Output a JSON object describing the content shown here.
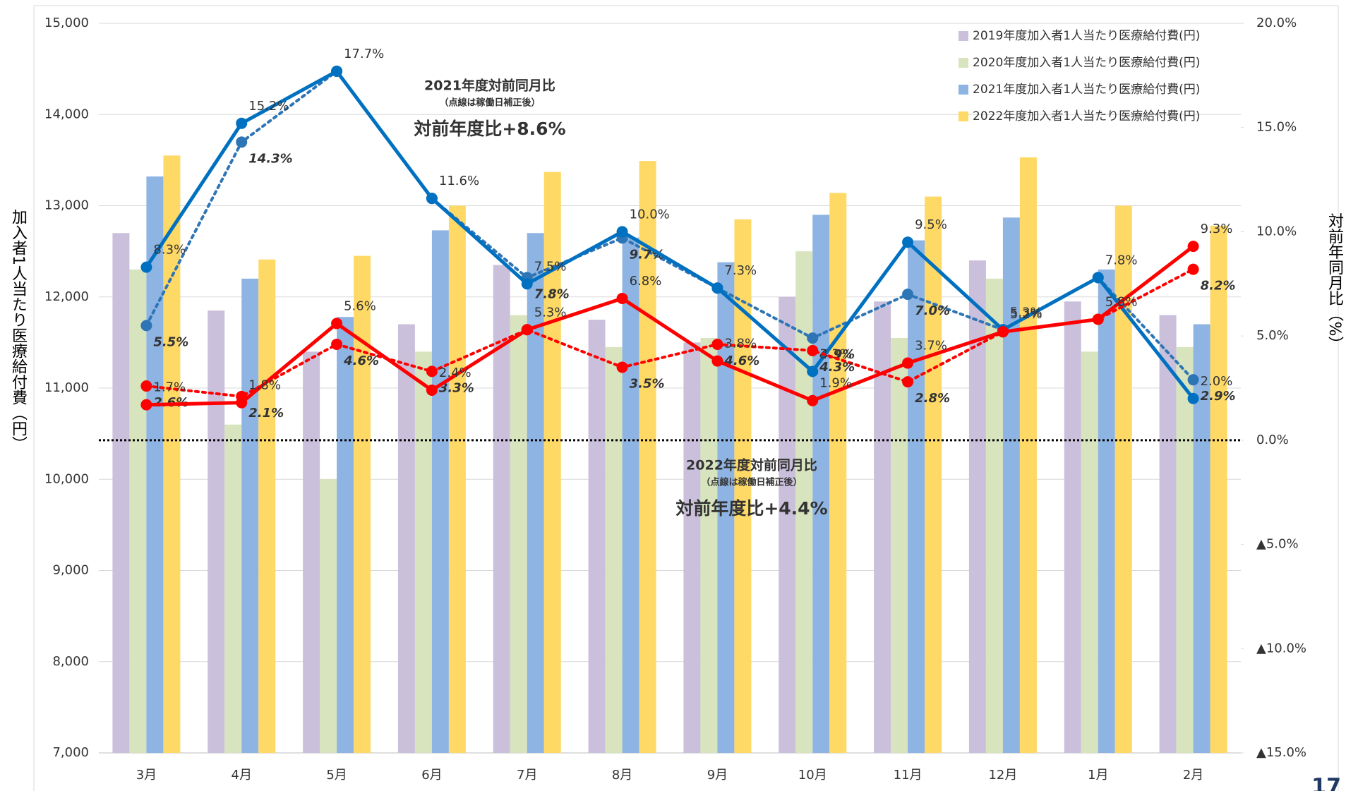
{
  "chart_data": {
    "type": "bar",
    "y_label": "加入者1人当たり医療給付費（円）",
    "y2_label": "対前年同月比（%）",
    "categories": [
      "3月",
      "4月",
      "5月",
      "6月",
      "7月",
      "8月",
      "9月",
      "10月",
      "11月",
      "12月",
      "1月",
      "2月"
    ],
    "ylim": [
      7000,
      15000
    ],
    "yticks": [
      {
        "value": 7000,
        "label": "7,000"
      },
      {
        "value": 8000,
        "label": "8,000"
      },
      {
        "value": 9000,
        "label": "9,000"
      },
      {
        "value": 10000,
        "label": "10,000"
      },
      {
        "value": 11000,
        "label": "11,000"
      },
      {
        "value": 12000,
        "label": "12,000"
      },
      {
        "value": 13000,
        "label": "13,000"
      },
      {
        "value": 14000,
        "label": "14,000"
      },
      {
        "value": 15000,
        "label": "15,000"
      }
    ],
    "y2lim": [
      -15,
      20
    ],
    "y2ticks": [
      {
        "value": 20,
        "label": "20.0%"
      },
      {
        "value": 15,
        "label": "15.0%"
      },
      {
        "value": 10,
        "label": "10.0%"
      },
      {
        "value": 5,
        "label": "5.0%"
      },
      {
        "value": 0,
        "label": "0.0%"
      },
      {
        "value": -5,
        "label": "▲5.0%"
      },
      {
        "value": -10,
        "label": "▲10.0%"
      },
      {
        "value": -15,
        "label": "▲15.0%"
      }
    ],
    "grid": true,
    "legend": "upper right",
    "series": [
      {
        "name": "2019年度加入者1人当たり医療給付費(円)",
        "color": "#cbc0dc",
        "values": [
          12700,
          11850,
          11400,
          11700,
          12350,
          11750,
          11500,
          12000,
          11950,
          12400,
          11950,
          11800
        ]
      },
      {
        "name": "2020年度加入者1人当たり医療給付費(円)",
        "color": "#d7e4bd",
        "values": [
          12300,
          10600,
          10000,
          11400,
          11800,
          11450,
          11550,
          12500,
          11550,
          12200,
          11400,
          11450
        ]
      },
      {
        "name": "2021年度加入者1人当たり医療給付費(円)",
        "color": "#8eb4e3",
        "values": [
          13320,
          12200,
          11780,
          12730,
          12700,
          12650,
          12380,
          12900,
          12620,
          12870,
          12300,
          11700
        ]
      },
      {
        "name": "2022年度加入者1人当たり医療給付費(円)",
        "color": "#ffd966",
        "values": [
          13550,
          12410,
          12450,
          13000,
          13370,
          13490,
          12850,
          13140,
          13100,
          13530,
          13000,
          12780
        ]
      },
      {
        "type": "line",
        "axis": "y2",
        "color": "#2e75b6",
        "dashed": true,
        "values": [
          5.5,
          14.3,
          17.7,
          11.6,
          7.8,
          9.7,
          7.3,
          4.9,
          7.0,
          5.3,
          7.8,
          2.9
        ],
        "value_labels": [
          "5.5%",
          "14.3%",
          null,
          null,
          "7.8%",
          "9.7%",
          null,
          "4.9%",
          "7.0%",
          null,
          null,
          "2.9%"
        ]
      },
      {
        "type": "line",
        "axis": "y2",
        "color": "#0070c0",
        "dashed": false,
        "values": [
          8.3,
          15.2,
          17.7,
          11.6,
          7.5,
          10.0,
          7.3,
          3.3,
          9.5,
          5.3,
          7.8,
          2.0
        ],
        "value_labels": [
          "8.3%",
          "15.2%",
          "17.7%",
          "11.6%",
          "7.5%",
          "10.0%",
          "7.3%",
          "3.3%",
          "9.5%",
          "5.3%",
          "7.8%",
          "2.0%"
        ]
      },
      {
        "type": "line",
        "axis": "y2",
        "color": "#ff0000",
        "dashed": true,
        "values": [
          2.6,
          2.1,
          4.6,
          3.3,
          5.3,
          3.5,
          4.6,
          4.3,
          2.8,
          5.2,
          5.8,
          8.2
        ],
        "value_labels": [
          "2.6%",
          "2.1%",
          "4.6%",
          "3.3%",
          null,
          "3.5%",
          "4.6%",
          "4.3%",
          "2.8%",
          null,
          null,
          "8.2%"
        ]
      },
      {
        "type": "line",
        "axis": "y2",
        "color": "#ff0000",
        "dashed": false,
        "values": [
          1.7,
          1.8,
          5.6,
          2.4,
          5.3,
          6.8,
          3.8,
          1.9,
          3.7,
          5.2,
          5.8,
          9.3
        ],
        "value_labels": [
          "1.7%",
          "1.8%",
          "5.6%",
          "2.4%",
          "5.3%",
          "6.8%",
          "3.8%",
          "1.9%",
          "3.7%",
          "5.2%",
          "5.8%",
          "9.3%"
        ]
      }
    ],
    "annotations": [
      {
        "title": "2021年度対前同月比",
        "note": "（点線は稼働日補正後）",
        "summary": "対前年度比+8.6%",
        "color": "#0070c0"
      },
      {
        "title": "2022年度対前同月比",
        "note": "（点線は稼働日補正後）",
        "summary": "対前年度比+4.4%",
        "color": "#ff0000"
      }
    ],
    "page_number": "17"
  }
}
